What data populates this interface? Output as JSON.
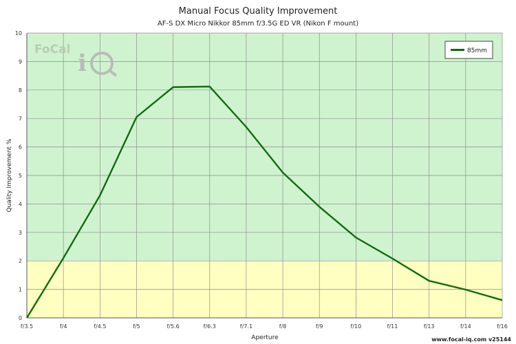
{
  "chart_data": {
    "type": "line",
    "title": "Manual Focus Quality Improvement",
    "subtitle": "AF-S DX Micro Nikkor 85mm f/3.5G ED VR (Nikon F mount)",
    "xlabel": "Aperture",
    "ylabel": "Quality Improvement %",
    "categories": [
      "f/3.5",
      "f/4",
      "f/4.5",
      "f/5",
      "f/5.6",
      "f/6.3",
      "f/7.1",
      "f/8",
      "f/9",
      "f/10",
      "f/11",
      "f/13",
      "f/14",
      "f/16"
    ],
    "ylim": [
      0,
      10
    ],
    "yticks": [
      0,
      1,
      2,
      3,
      4,
      5,
      6,
      7,
      8,
      9,
      10
    ],
    "grid": true,
    "legend_position": "top-right",
    "series": [
      {
        "name": "85mm",
        "color": "#0e6b0e",
        "values": [
          0.0,
          2.1,
          4.3,
          7.05,
          8.1,
          8.12,
          6.7,
          5.1,
          3.9,
          2.82,
          2.08,
          1.3,
          0.99,
          0.62
        ]
      }
    ],
    "bands": [
      {
        "from": 0,
        "to": 2,
        "color": "#ffffc2"
      },
      {
        "from": 2,
        "to": 10,
        "color": "#cff3cf"
      }
    ],
    "footer": "www.focal-iq.com  v25144",
    "logo_text": "FoCal"
  }
}
